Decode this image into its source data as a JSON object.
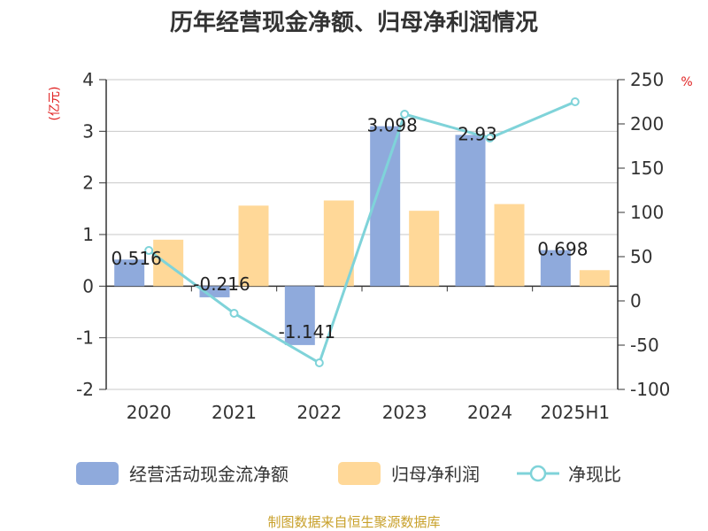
{
  "chart_data": {
    "type": "bar",
    "title": "历年经营现金净额、归母净利润情况",
    "categories": [
      "2020",
      "2021",
      "2022",
      "2023",
      "2024",
      "2025H1"
    ],
    "series": [
      {
        "name": "经营活动现金流净额",
        "type": "bar",
        "axis": "left",
        "color": "#8faadc",
        "values": [
          0.516,
          -0.216,
          -1.141,
          3.098,
          2.93,
          0.698
        ],
        "labels": [
          "0.516",
          "-0.216",
          "-1.141",
          "3.098",
          "2.93",
          "0.698"
        ]
      },
      {
        "name": "归母净利润",
        "type": "bar",
        "axis": "left",
        "color": "#ffd898",
        "values": [
          0.9,
          1.56,
          1.66,
          1.46,
          1.59,
          0.31
        ]
      },
      {
        "name": "净现比",
        "type": "line",
        "axis": "right",
        "color": "#7fd3d9",
        "values": [
          57,
          -14,
          -70,
          211,
          184,
          225
        ]
      }
    ],
    "y_left": {
      "unit": "(亿元)",
      "min": -2,
      "max": 4,
      "ticks": [
        "4",
        "3",
        "2",
        "1",
        "0",
        "-1",
        "-2"
      ]
    },
    "y_right": {
      "unit": "%",
      "min": -100,
      "max": 250,
      "ticks": [
        "250",
        "200",
        "150",
        "100",
        "50",
        "0",
        "-50",
        "-100"
      ]
    },
    "grid": true,
    "legend_position": "bottom"
  },
  "source_note": "制图数据来自恒生聚源数据库"
}
